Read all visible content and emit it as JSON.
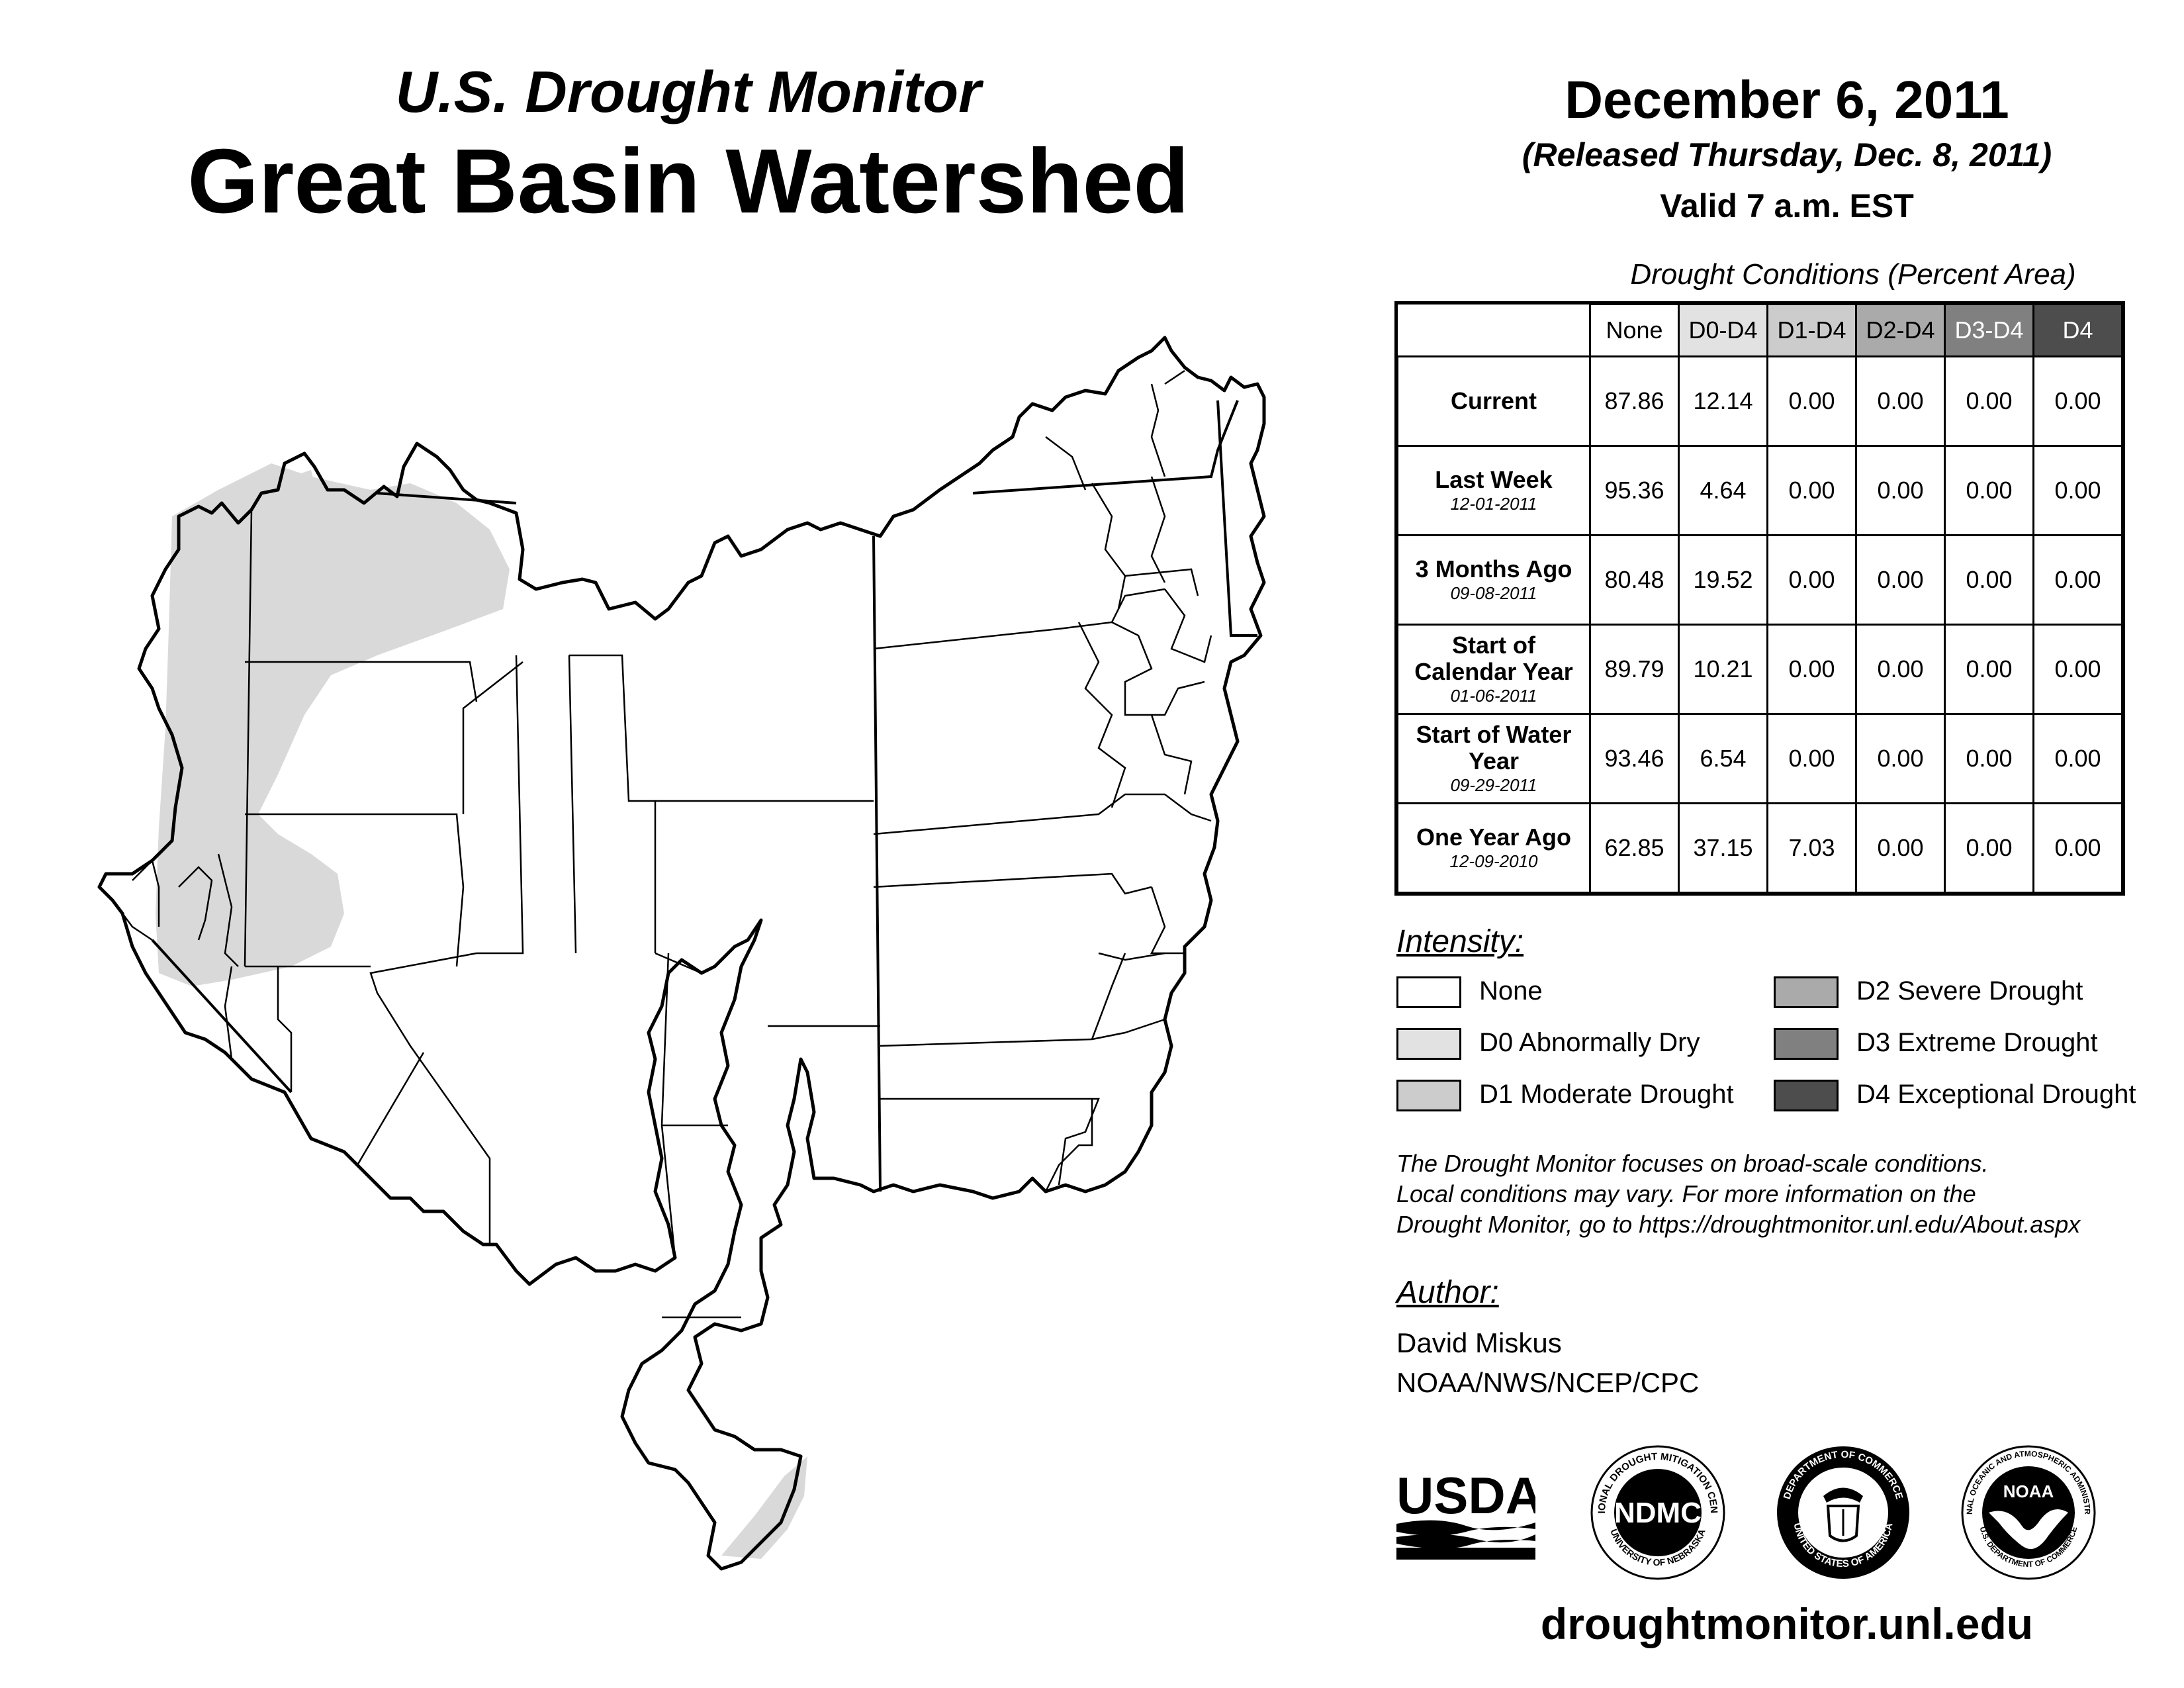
{
  "header": {
    "subtitle": "U.S. Drought Monitor",
    "title": "Great Basin Watershed",
    "date": "December 6, 2011",
    "released": "(Released Thursday, Dec. 8, 2011)",
    "valid": "Valid 7 a.m. EST"
  },
  "table": {
    "title": "Drought Conditions (Percent Area)",
    "columns": [
      {
        "label": "None",
        "bg": "#ffffff",
        "fg": "#000000"
      },
      {
        "label": "D0-D4",
        "bg": "#e2e2e2",
        "fg": "#000000"
      },
      {
        "label": "D1-D4",
        "bg": "#cccccc",
        "fg": "#000000"
      },
      {
        "label": "D2-D4",
        "bg": "#aaaaaa",
        "fg": "#000000"
      },
      {
        "label": "D3-D4",
        "bg": "#808080",
        "fg": "#ffffff"
      },
      {
        "label": "D4",
        "bg": "#4d4d4d",
        "fg": "#ffffff"
      }
    ],
    "rows": [
      {
        "label": "Current",
        "date": "",
        "values": [
          "87.86",
          "12.14",
          "0.00",
          "0.00",
          "0.00",
          "0.00"
        ]
      },
      {
        "label": "Last Week",
        "date": "12-01-2011",
        "values": [
          "95.36",
          "4.64",
          "0.00",
          "0.00",
          "0.00",
          "0.00"
        ]
      },
      {
        "label": "3 Months Ago",
        "date": "09-08-2011",
        "values": [
          "80.48",
          "19.52",
          "0.00",
          "0.00",
          "0.00",
          "0.00"
        ]
      },
      {
        "label": "Start of Calendar Year",
        "date": "01-06-2011",
        "values": [
          "89.79",
          "10.21",
          "0.00",
          "0.00",
          "0.00",
          "0.00"
        ]
      },
      {
        "label": "Start of Water Year",
        "date": "09-29-2011",
        "values": [
          "93.46",
          "6.54",
          "0.00",
          "0.00",
          "0.00",
          "0.00"
        ]
      },
      {
        "label": "One Year Ago",
        "date": "12-09-2010",
        "values": [
          "62.85",
          "37.15",
          "7.03",
          "0.00",
          "0.00",
          "0.00"
        ]
      }
    ]
  },
  "legend": {
    "title": "Intensity:",
    "items": [
      {
        "label": "None",
        "color": "#ffffff"
      },
      {
        "label": "D0 Abnormally Dry",
        "color": "#e2e2e2"
      },
      {
        "label": "D1 Moderate Drought",
        "color": "#cccccc"
      },
      {
        "label": "D2 Severe Drought",
        "color": "#aaaaaa"
      },
      {
        "label": "D3 Extreme Drought",
        "color": "#808080"
      },
      {
        "label": "D4 Exceptional Drought",
        "color": "#4d4d4d"
      }
    ]
  },
  "note": {
    "line1": "The Drought Monitor focuses on broad-scale conditions.",
    "line2": "Local conditions may vary. For more information on the",
    "line3": "Drought Monitor, go to https://droughtmonitor.unl.edu/About.aspx"
  },
  "author": {
    "title": "Author:",
    "name": "David Miskus",
    "org": "NOAA/NWS/NCEP/CPC"
  },
  "logos": {
    "usda": "USDA",
    "ndmc": "NDMC",
    "ndmc_ring_top": "NATIONAL DROUGHT MITIGATION CENTER",
    "ndmc_ring_bottom": "UNIVERSITY OF NEBRASKA",
    "doc_ring_top": "DEPARTMENT OF COMMERCE",
    "doc_ring_bottom": "UNITED STATES OF AMERICA",
    "noaa": "NOAA",
    "noaa_ring_top": "NATIONAL OCEANIC AND ATMOSPHERIC ADMINISTRATION",
    "noaa_ring_bottom": "U.S. DEPARTMENT OF COMMERCE"
  },
  "footer": {
    "url": "droughtmonitor.unl.edu"
  }
}
